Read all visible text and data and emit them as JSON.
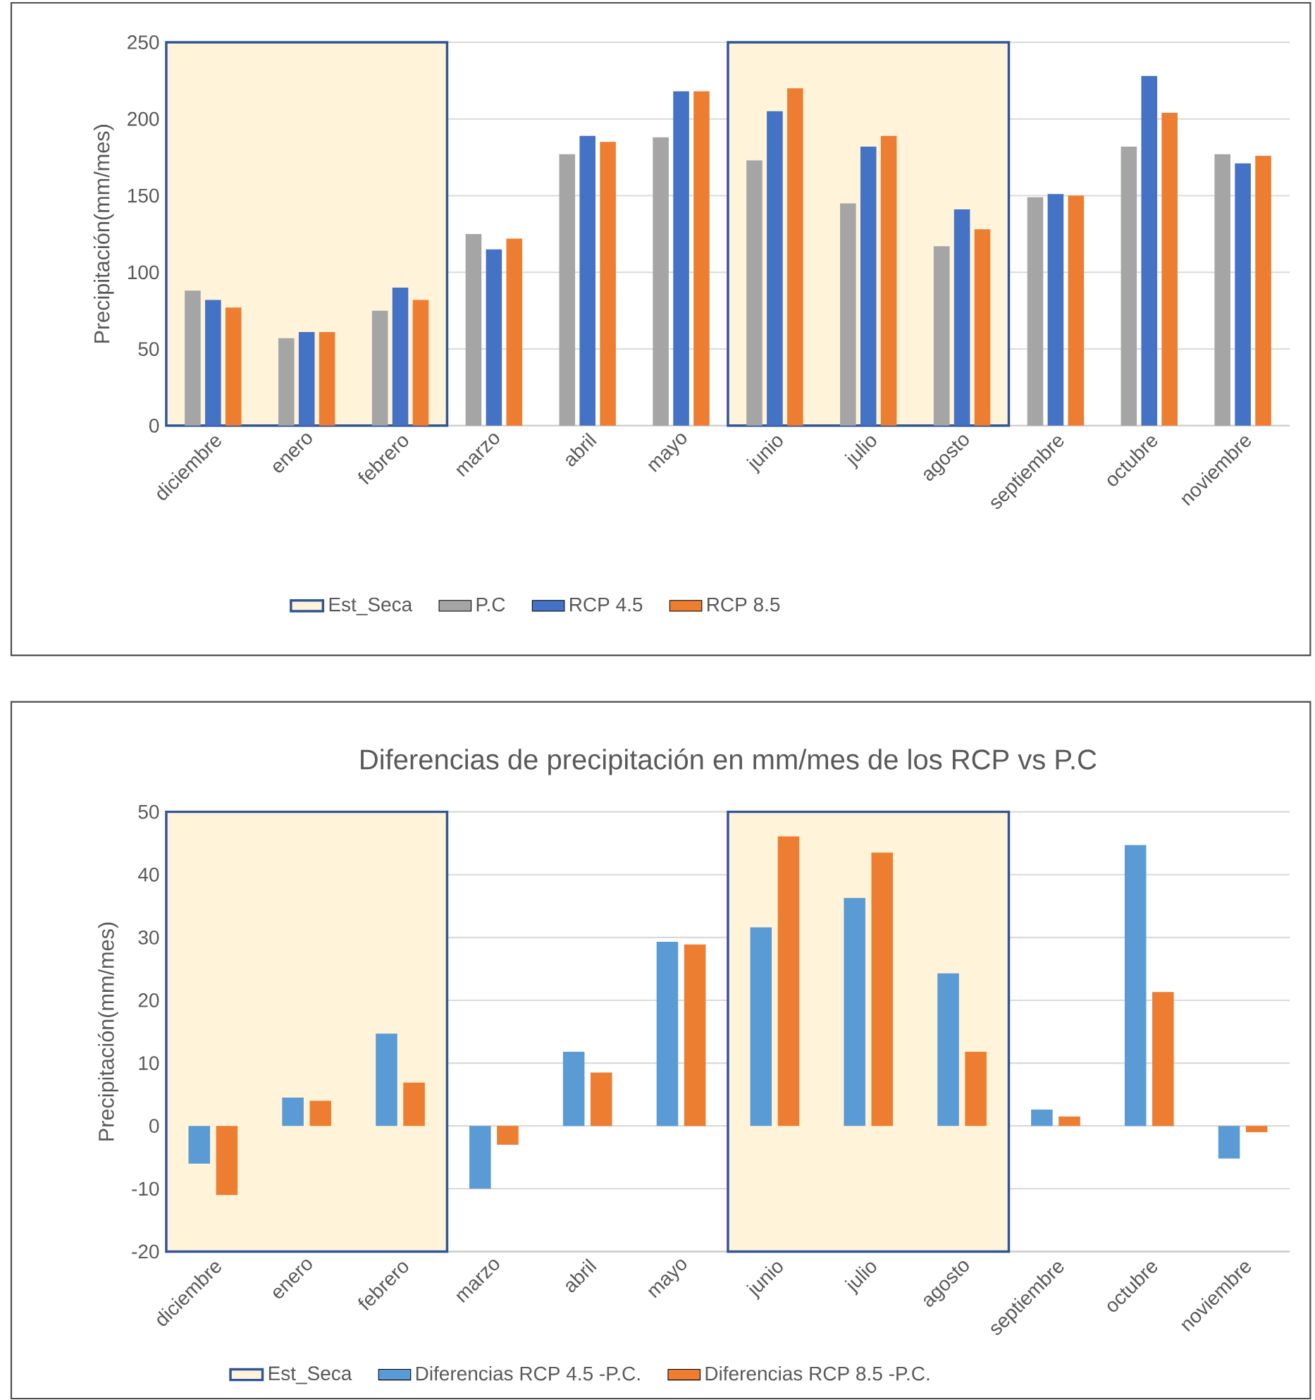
{
  "chart_data": [
    {
      "type": "bar",
      "ylabel": "Precipitación(mm/mes)",
      "categories": [
        "diciembre",
        "enero",
        "febrero",
        "marzo",
        "abril",
        "mayo",
        "junio",
        "julio",
        "agosto",
        "septiembre",
        "octubre",
        "noviembre"
      ],
      "series": [
        {
          "name": "P.C",
          "color": "#a5a5a5",
          "values": [
            88,
            57,
            75,
            125,
            177,
            188,
            173,
            145,
            117,
            149,
            182,
            177
          ]
        },
        {
          "name": "RCP 4.5",
          "color": "#4472c4",
          "values": [
            82,
            61,
            90,
            115,
            189,
            218,
            205,
            182,
            141,
            151,
            228,
            171
          ]
        },
        {
          "name": "RCP 8.5",
          "color": "#ed7d31",
          "values": [
            77,
            61,
            82,
            122,
            185,
            218,
            220,
            189,
            128,
            150,
            204,
            176
          ]
        }
      ],
      "bands": [
        {
          "axis": "x",
          "from": "diciembre",
          "to": "febrero",
          "label": "Est_Seca",
          "color": "#fff4d9"
        },
        {
          "axis": "x",
          "from": "junio",
          "to": "agosto",
          "color": "#fff4d9"
        }
      ],
      "ylim": [
        0,
        250
      ],
      "yticks": [
        0,
        50,
        100,
        150,
        200,
        250
      ],
      "grid": "y",
      "legend": "bottom"
    },
    {
      "type": "bar",
      "title": "Diferencias de precipitación en mm/mes de los RCP vs P.C",
      "ylabel": "Precipitación(mm/mes)",
      "categories": [
        "diciembre",
        "enero",
        "febrero",
        "marzo",
        "abril",
        "mayo",
        "junio",
        "julio",
        "agosto",
        "septiembre",
        "octubre",
        "noviembre"
      ],
      "series": [
        {
          "name": "Diferencias RCP 4.5 -P.C.",
          "color": "#5b9bd5",
          "values": [
            -6,
            4.5,
            14.7,
            -10,
            11.8,
            29.3,
            31.6,
            36.3,
            24.3,
            2.6,
            44.7,
            -5.2
          ]
        },
        {
          "name": "Diferencias RCP 8.5 -P.C.",
          "color": "#ed7d31",
          "values": [
            -11,
            4,
            6.9,
            -3,
            8.5,
            28.9,
            46.1,
            43.5,
            11.8,
            1.5,
            21.3,
            -1
          ]
        }
      ],
      "bands": [
        {
          "axis": "x",
          "from": "diciembre",
          "to": "febrero",
          "label": "Est_Seca",
          "color": "#fff4d9"
        },
        {
          "axis": "x",
          "from": "junio",
          "to": "agosto",
          "color": "#fff4d9"
        }
      ],
      "ylim": [
        -20,
        50
      ],
      "yticks": [
        -20,
        -10,
        0,
        10,
        20,
        30,
        40,
        50
      ],
      "grid": "y",
      "legend": "bottom"
    }
  ]
}
